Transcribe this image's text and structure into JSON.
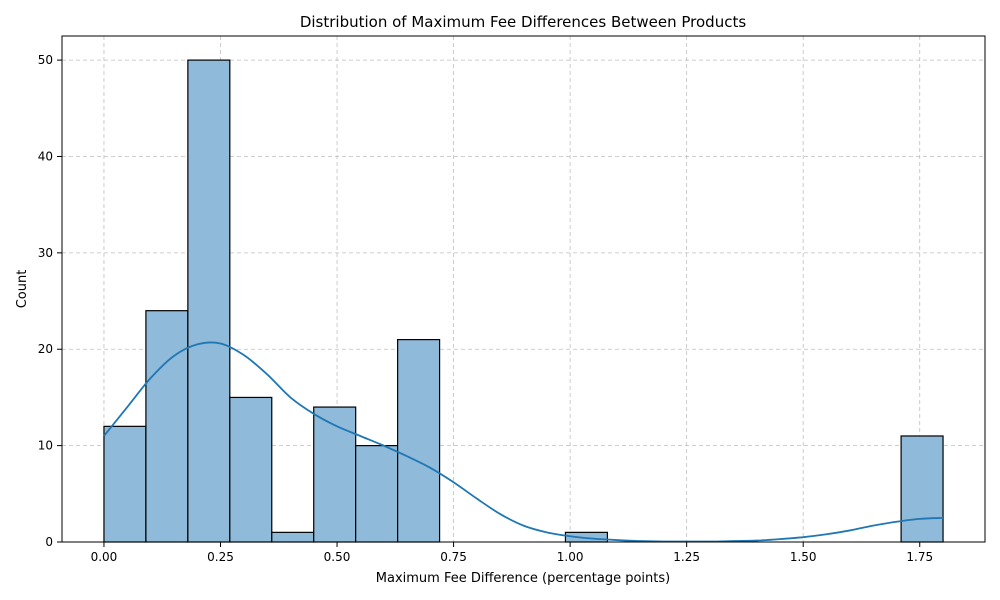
{
  "chart_data": {
    "type": "bar",
    "title": "Distribution of Maximum Fee Differences Between Products",
    "xlabel": "Maximum Fee Difference (percentage points)",
    "ylabel": "Count",
    "xlim": [
      -0.09,
      1.89
    ],
    "ylim": [
      0,
      52.5
    ],
    "xticks": [
      0.0,
      0.25,
      0.5,
      0.75,
      1.0,
      1.25,
      1.5,
      1.75
    ],
    "xtick_labels": [
      "0.00",
      "0.25",
      "0.50",
      "0.75",
      "1.00",
      "1.25",
      "1.50",
      "1.75"
    ],
    "yticks": [
      0,
      10,
      20,
      30,
      40,
      50
    ],
    "ytick_labels": [
      "0",
      "10",
      "20",
      "30",
      "40",
      "50"
    ],
    "grid": true,
    "bin_edges": [
      0.0,
      0.09,
      0.18,
      0.27,
      0.36,
      0.45,
      0.54,
      0.63,
      0.72,
      0.81,
      0.9,
      0.99,
      1.08,
      1.17,
      1.26,
      1.35,
      1.44,
      1.53,
      1.62,
      1.71,
      1.8
    ],
    "counts": [
      12,
      24,
      50,
      15,
      1,
      14,
      10,
      21,
      0,
      0,
      0,
      1,
      0,
      0,
      0,
      0,
      0,
      0,
      0,
      11
    ],
    "kde": {
      "x": [
        0.0,
        0.05,
        0.1,
        0.15,
        0.2,
        0.25,
        0.3,
        0.35,
        0.4,
        0.45,
        0.5,
        0.55,
        0.6,
        0.65,
        0.7,
        0.75,
        0.8,
        0.85,
        0.9,
        0.95,
        1.0,
        1.05,
        1.1,
        1.15,
        1.2,
        1.25,
        1.3,
        1.35,
        1.4,
        1.45,
        1.5,
        1.55,
        1.6,
        1.65,
        1.7,
        1.75,
        1.8
      ],
      "y": [
        11.0,
        14.0,
        17.0,
        19.3,
        20.5,
        20.6,
        19.4,
        17.4,
        15.0,
        13.3,
        12.0,
        11.0,
        10.0,
        8.9,
        7.7,
        6.2,
        4.5,
        2.9,
        1.7,
        1.0,
        0.6,
        0.35,
        0.2,
        0.1,
        0.05,
        0.05,
        0.05,
        0.1,
        0.15,
        0.3,
        0.5,
        0.8,
        1.2,
        1.7,
        2.1,
        2.4,
        2.5
      ]
    }
  }
}
